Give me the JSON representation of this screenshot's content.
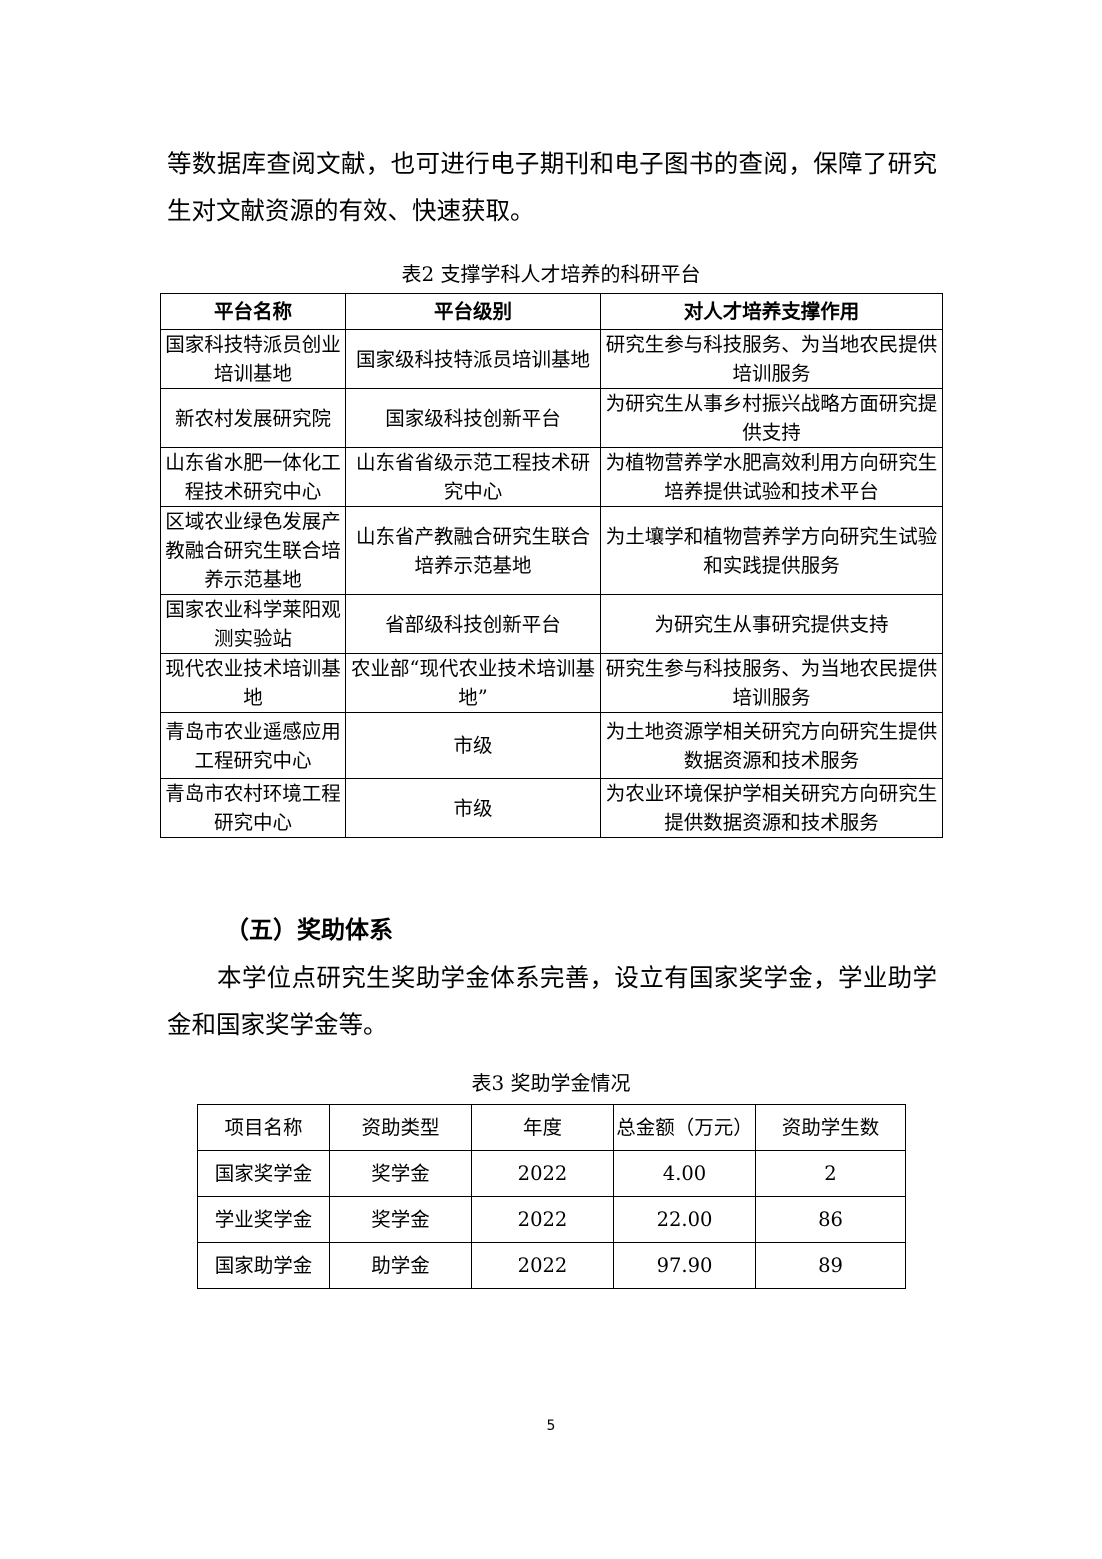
{
  "intro_paragraph": "等数据库查阅文献，也可进行电子期刊和电子图书的查阅，保障了研究生对文献资源的有效、快速获取。",
  "table2": {
    "caption": "表2  支撑学科人才培养的科研平台",
    "headers": [
      "平台名称",
      "平台级别",
      "对人才培养支撑作用"
    ],
    "rows": [
      [
        "国家科技特派员创业培训基地",
        "国家级科技特派员培训基地",
        "研究生参与科技服务、为当地农民提供培训服务"
      ],
      [
        "新农村发展研究院",
        "国家级科技创新平台",
        "为研究生从事乡村振兴战略方面研究提供支持"
      ],
      [
        "山东省水肥一体化工程技术研究中心",
        "山东省省级示范工程技术研究中心",
        "为植物营养学水肥高效利用方向研究生培养提供试验和技术平台"
      ],
      [
        "区域农业绿色发展产教融合研究生联合培养示范基地",
        "山东省产教融合研究生联合培养示范基地",
        "为土壤学和植物营养学方向研究生试验和实践提供服务"
      ],
      [
        "国家农业科学莱阳观测实验站",
        "省部级科技创新平台",
        "为研究生从事研究提供支持"
      ],
      [
        "现代农业技术培训基地",
        "农业部“现代农业技术培训基地”",
        "研究生参与科技服务、为当地农民提供培训服务"
      ],
      [
        "青岛市农业遥感应用工程研究中心",
        "市级",
        "为土地资源学相关研究方向研究生提供数据资源和技术服务"
      ],
      [
        "青岛市农村环境工程研究中心",
        "市级",
        "为农业环境保护学相关研究方向研究生提供数据资源和技术服务"
      ]
    ]
  },
  "section_heading": "（五）奖助体系",
  "section_paragraph": "本学位点研究生奖助学金体系完善，设立有国家奖学金，学业助学金和国家奖学金等。",
  "table3": {
    "caption": "表3  奖助学金情况",
    "headers": [
      "项目名称",
      "资助类型",
      "年度",
      "总金额（万元）",
      "资助学生数"
    ],
    "rows": [
      [
        "国家奖学金",
        "奖学金",
        "2022",
        "4.00",
        "2"
      ],
      [
        "学业奖学金",
        "奖学金",
        "2022",
        "22.00",
        "86"
      ],
      [
        "国家助学金",
        "助学金",
        "2022",
        "97.90",
        "89"
      ]
    ]
  },
  "page_number": "5"
}
